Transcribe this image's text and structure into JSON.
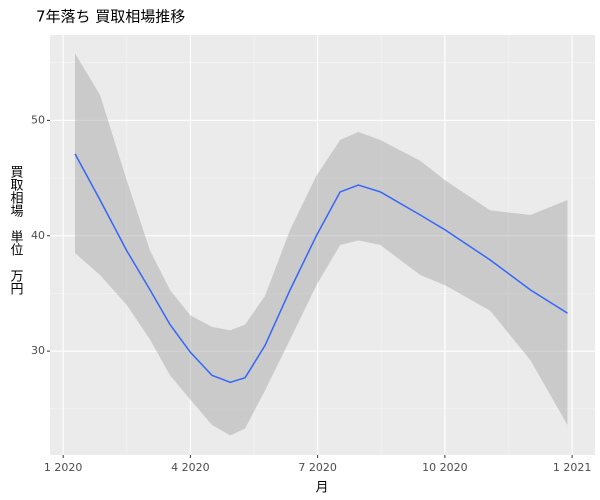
{
  "chart_data": {
    "type": "smooth",
    "title": "7年落ち 買取相場推移",
    "x_label": "月",
    "y_label": "買取相場　単位　万円",
    "x": [
      0.28,
      0.87,
      1.5,
      2.05,
      2.52,
      3.0,
      3.51,
      3.94,
      4.29,
      4.76,
      5.35,
      5.97,
      6.53,
      6.96,
      7.48,
      8.42,
      9.01,
      10.07,
      11.02,
      11.89
    ],
    "values": [
      47.1,
      43.1,
      38.7,
      35.3,
      32.3,
      29.9,
      27.9,
      27.3,
      27.7,
      30.5,
      35.3,
      40.0,
      43.8,
      44.4,
      43.8,
      41.8,
      40.5,
      37.9,
      35.3,
      33.3
    ],
    "upper": [
      55.8,
      52.2,
      44.8,
      38.7,
      35.3,
      33.1,
      32.1,
      31.8,
      32.3,
      34.8,
      40.5,
      45.2,
      48.3,
      49.0,
      48.3,
      46.5,
      44.8,
      42.2,
      41.8,
      43.1
    ],
    "lower": [
      38.5,
      36.6,
      34.0,
      31.0,
      27.9,
      25.8,
      23.6,
      22.7,
      23.3,
      26.6,
      31.0,
      35.7,
      39.2,
      39.6,
      39.2,
      36.6,
      35.7,
      33.5,
      29.2,
      23.6
    ],
    "color": "#3366ff",
    "band_color": "#999999",
    "xlim": [
      -0.31,
      12.54
    ],
    "ylim": [
      21,
      57.4
    ],
    "xticks": [
      {
        "value": 0,
        "label": "1 2020"
      },
      {
        "value": 3,
        "label": "4 2020"
      },
      {
        "value": 6,
        "label": "7 2020"
      },
      {
        "value": 9,
        "label": "10 2020"
      },
      {
        "value": 12,
        "label": "1 2021"
      }
    ],
    "yticks": [
      30,
      40,
      50
    ],
    "x_minor_grid": [
      1.5,
      4.5,
      7.5,
      10.5
    ],
    "y_minor_grid": [
      25,
      35,
      45,
      55
    ],
    "grid": true
  }
}
